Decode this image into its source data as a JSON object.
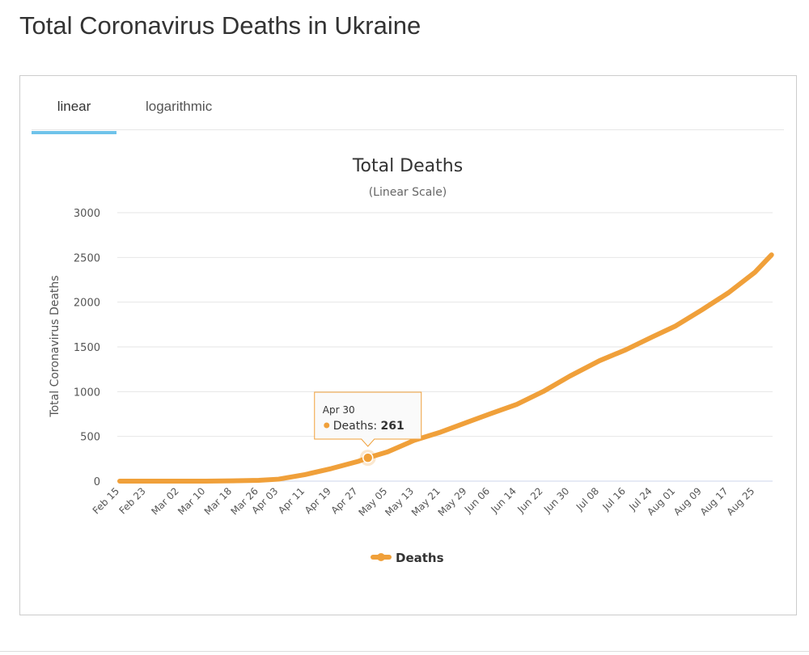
{
  "page_title": "Total Coronavirus Deaths in Ukraine",
  "tabs": [
    {
      "label": "linear",
      "active": true
    },
    {
      "label": "logarithmic",
      "active": false
    }
  ],
  "chart_data": {
    "type": "line",
    "title": "Total Deaths",
    "subtitle": "(Linear Scale)",
    "ylabel": "Total Coronavirus Deaths",
    "xlabel": "",
    "ylim": [
      0,
      3000
    ],
    "yticks": [
      "0",
      "500",
      "1000",
      "1500",
      "2000",
      "2500",
      "3000"
    ],
    "xticks": [
      "Feb 15",
      "Feb 23",
      "Mar 02",
      "Mar 10",
      "Mar 18",
      "Mar 26",
      "Apr 03",
      "Apr 11",
      "Apr 19",
      "Apr 27",
      "May 05",
      "May 13",
      "May 21",
      "May 29",
      "Jun 06",
      "Jun 14",
      "Jun 22",
      "Jun 30",
      "Jul 08",
      "Jul 16",
      "Jul 24",
      "Aug 01",
      "Aug 09",
      "Aug 17",
      "Aug 25"
    ],
    "grid": true,
    "legend_position": "bottom",
    "color": "#f0a03a",
    "series": [
      {
        "name": "Deaths",
        "x": [
          "Feb 15",
          "Feb 23",
          "Mar 02",
          "Mar 10",
          "Mar 18",
          "Mar 26",
          "Apr 03",
          "Apr 11",
          "Apr 19",
          "Apr 27",
          "Apr 30",
          "May 05",
          "May 13",
          "May 21",
          "May 29",
          "Jun 06",
          "Jun 14",
          "Jun 22",
          "Jun 30",
          "Jul 08",
          "Jul 16",
          "Jul 24",
          "Aug 01",
          "Aug 09",
          "Aug 17",
          "Aug 25",
          "Aug 30"
        ],
        "values": [
          0,
          0,
          0,
          0,
          3,
          9,
          22,
          73,
          141,
          220,
          261,
          327,
          456,
          548,
          658,
          753,
          858,
          1002,
          1173,
          1346,
          1469,
          1612,
          1734,
          1915,
          2106,
          2335,
          2529
        ]
      }
    ],
    "tooltip": {
      "date": "Apr 30",
      "label": "Deaths: ",
      "value": "261"
    }
  }
}
